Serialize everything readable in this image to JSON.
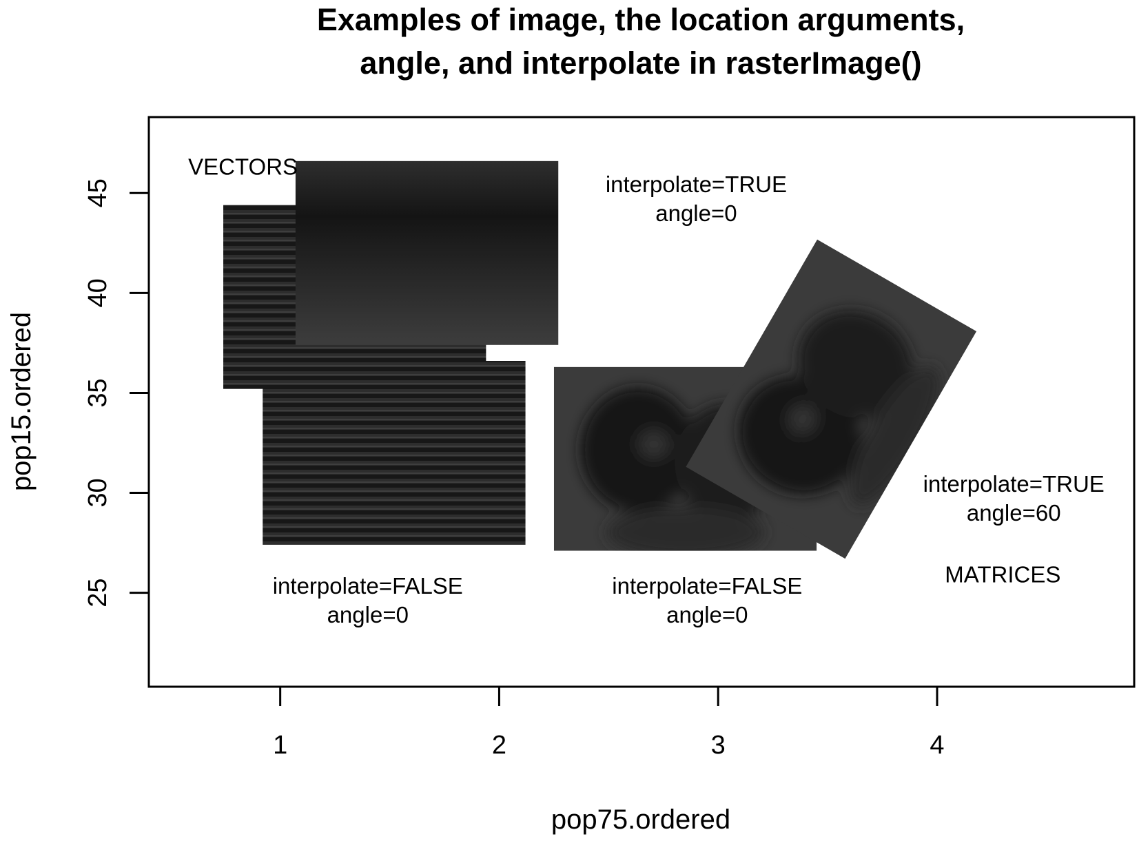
{
  "chart_data": {
    "type": "scatter",
    "title_lines": [
      "Examples of image, the location arguments,",
      "angle, and interpolate in rasterImage()"
    ],
    "xlabel": "pop75.ordered",
    "ylabel": "pop15.ordered",
    "x_ticks": [
      1,
      2,
      3,
      4
    ],
    "y_ticks": [
      25,
      30,
      35,
      40,
      45
    ],
    "xlim": [
      0.4,
      4.9
    ],
    "ylim": [
      20.3,
      48.8
    ],
    "rasters": [
      {
        "name": "vector-raster-striped-back",
        "style": "striped",
        "xleft": 0.74,
        "ybottom": 35.2,
        "xright": 1.94,
        "ytop": 44.4,
        "angle": 0
      },
      {
        "name": "vector-raster-smooth",
        "style": "smooth-horizontal",
        "xleft": 1.07,
        "ybottom": 37.4,
        "xright": 2.27,
        "ytop": 46.6,
        "angle": 0
      },
      {
        "name": "vector-raster-striped-front",
        "style": "striped",
        "xleft": 0.92,
        "ybottom": 27.4,
        "xright": 2.12,
        "ytop": 36.6,
        "angle": 0
      },
      {
        "name": "matrix-raster-blocky",
        "style": "blobs",
        "xleft": 2.25,
        "ybottom": 27.1,
        "xright": 3.45,
        "ytop": 36.3,
        "angle": 0
      },
      {
        "name": "matrix-raster-rotated",
        "style": "blobs",
        "xleft": 3.58,
        "ybottom": 26.7,
        "xright": 4.78,
        "ytop": 35.9,
        "angle": 60
      }
    ],
    "annotations": [
      {
        "lines": [
          "VECTORS"
        ],
        "x": 1.08,
        "y": 46.3,
        "align": "end"
      },
      {
        "lines": [
          "interpolate=TRUE",
          "angle=0"
        ],
        "x": 2.9,
        "y": 44.7,
        "align": "middle"
      },
      {
        "lines": [
          "interpolate=TRUE",
          "angle=60"
        ],
        "x": 4.35,
        "y": 29.7,
        "align": "middle"
      },
      {
        "lines": [
          "MATRICES"
        ],
        "x": 4.3,
        "y": 25.9,
        "align": "middle"
      },
      {
        "lines": [
          "interpolate=FALSE",
          "angle=0"
        ],
        "x": 1.4,
        "y": 24.6,
        "align": "middle"
      },
      {
        "lines": [
          "interpolate=FALSE",
          "angle=0"
        ],
        "x": 2.95,
        "y": 24.6,
        "align": "middle"
      }
    ]
  }
}
